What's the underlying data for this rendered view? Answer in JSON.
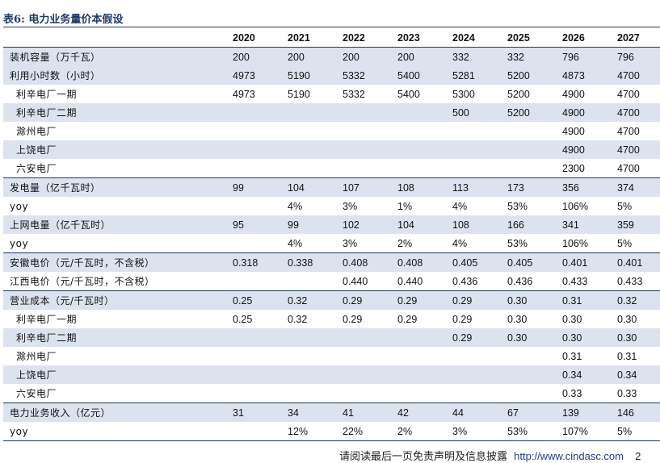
{
  "title": "表6:  电力业务量价本假设",
  "years": [
    "2020",
    "2021",
    "2022",
    "2023",
    "2024",
    "2025",
    "2026",
    "2027"
  ],
  "rows": [
    {
      "label": "装机容量（万千瓦）",
      "values": [
        "200",
        "200",
        "200",
        "200",
        "332",
        "332",
        "796",
        "796"
      ]
    },
    {
      "label": "利用小时数（小时）",
      "values": [
        "4973",
        "5190",
        "5332",
        "5400",
        "5281",
        "5200",
        "4873",
        "4700"
      ]
    },
    {
      "label": "利辛电厂一期",
      "values": [
        "4973",
        "5190",
        "5332",
        "5400",
        "5300",
        "5200",
        "4900",
        "4700"
      ]
    },
    {
      "label": "利辛电厂二期",
      "values": [
        "",
        "",
        "",
        "",
        "500",
        "5200",
        "4900",
        "4700"
      ]
    },
    {
      "label": "滁州电厂",
      "values": [
        "",
        "",
        "",
        "",
        "",
        "",
        "4900",
        "4700"
      ]
    },
    {
      "label": "上饶电厂",
      "values": [
        "",
        "",
        "",
        "",
        "",
        "",
        "4900",
        "4700"
      ]
    },
    {
      "label": "六安电厂",
      "values": [
        "",
        "",
        "",
        "",
        "",
        "",
        "2300",
        "4700"
      ]
    },
    {
      "label": "发电量（亿千瓦时）",
      "values": [
        "99",
        "104",
        "107",
        "108",
        "113",
        "173",
        "356",
        "374"
      ]
    },
    {
      "label": "yoy",
      "values": [
        "",
        "4%",
        "3%",
        "1%",
        "4%",
        "53%",
        "106%",
        "5%"
      ]
    },
    {
      "label": "上网电量（亿千瓦时）",
      "values": [
        "95",
        "99",
        "102",
        "104",
        "108",
        "166",
        "341",
        "359"
      ]
    },
    {
      "label": "yoy",
      "values": [
        "",
        "4%",
        "3%",
        "2%",
        "4%",
        "53%",
        "106%",
        "5%"
      ]
    },
    {
      "label": "安徽电价（元/千瓦时，不含税）",
      "values": [
        "0.318",
        "0.338",
        "0.408",
        "0.408",
        "0.405",
        "0.405",
        "0.401",
        "0.401"
      ]
    },
    {
      "label": "江西电价（元/千瓦时，不含税）",
      "values": [
        "",
        "",
        "0.440",
        "0.440",
        "0.436",
        "0.436",
        "0.433",
        "0.433"
      ]
    },
    {
      "label": "营业成本（元/千瓦时）",
      "values": [
        "0.25",
        "0.32",
        "0.29",
        "0.29",
        "0.29",
        "0.30",
        "0.31",
        "0.32"
      ]
    },
    {
      "label": "利辛电厂一期",
      "values": [
        "0.25",
        "0.32",
        "0.29",
        "0.29",
        "0.29",
        "0.30",
        "0.30",
        "0.30"
      ]
    },
    {
      "label": "利辛电厂二期",
      "values": [
        "",
        "",
        "",
        "",
        "0.29",
        "0.30",
        "0.30",
        "0.30"
      ]
    },
    {
      "label": "滁州电厂",
      "values": [
        "",
        "",
        "",
        "",
        "",
        "",
        "0.31",
        "0.31"
      ]
    },
    {
      "label": "上饶电厂",
      "values": [
        "",
        "",
        "",
        "",
        "",
        "",
        "0.34",
        "0.34"
      ]
    },
    {
      "label": "六安电厂",
      "values": [
        "",
        "",
        "",
        "",
        "",
        "",
        "0.33",
        "0.33"
      ]
    },
    {
      "label": "电力业务收入（亿元）",
      "values": [
        "31",
        "34",
        "41",
        "42",
        "44",
        "67",
        "139",
        "146"
      ]
    },
    {
      "label": "yoy",
      "values": [
        "",
        "12%",
        "22%",
        "2%",
        "3%",
        "53%",
        "107%",
        "5%"
      ]
    }
  ],
  "footer": {
    "disclaimer": "请阅读最后一页免责声明及信息披露",
    "url": "http://www.cindasc.com",
    "page": "2"
  }
}
